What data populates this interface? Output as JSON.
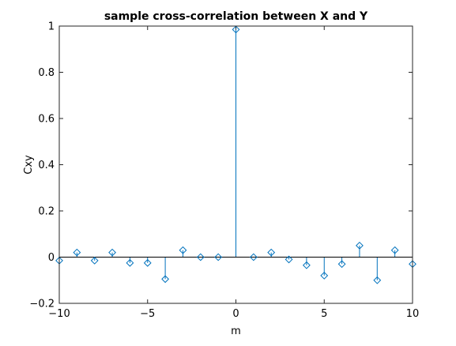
{
  "chart_data": {
    "type": "stem",
    "title": "sample cross-correlation between X and Y",
    "xlabel": "m",
    "ylabel": "Cxy",
    "xlim": [
      -10,
      10
    ],
    "ylim": [
      -0.2,
      1
    ],
    "xticks": [
      "−10",
      "−5",
      "0",
      "5",
      "10"
    ],
    "yticks": [
      "−0.2",
      "0",
      "0.2",
      "0.4",
      "0.6",
      "0.8",
      "1"
    ],
    "grid": false,
    "series": [
      {
        "color": "#0072bd",
        "marker": "diamond",
        "x": [
          -10,
          -9,
          -8,
          -7,
          -6,
          -5,
          -4,
          -3,
          -2,
          -1,
          0,
          1,
          2,
          3,
          4,
          5,
          6,
          7,
          8,
          9,
          10
        ],
        "y": [
          -0.015,
          0.02,
          -0.015,
          0.02,
          -0.025,
          -0.025,
          -0.095,
          0.03,
          0.0,
          0.0,
          0.985,
          0.0,
          0.02,
          -0.01,
          -0.035,
          -0.08,
          -0.03,
          0.05,
          -0.1,
          0.03,
          -0.03
        ]
      }
    ]
  }
}
